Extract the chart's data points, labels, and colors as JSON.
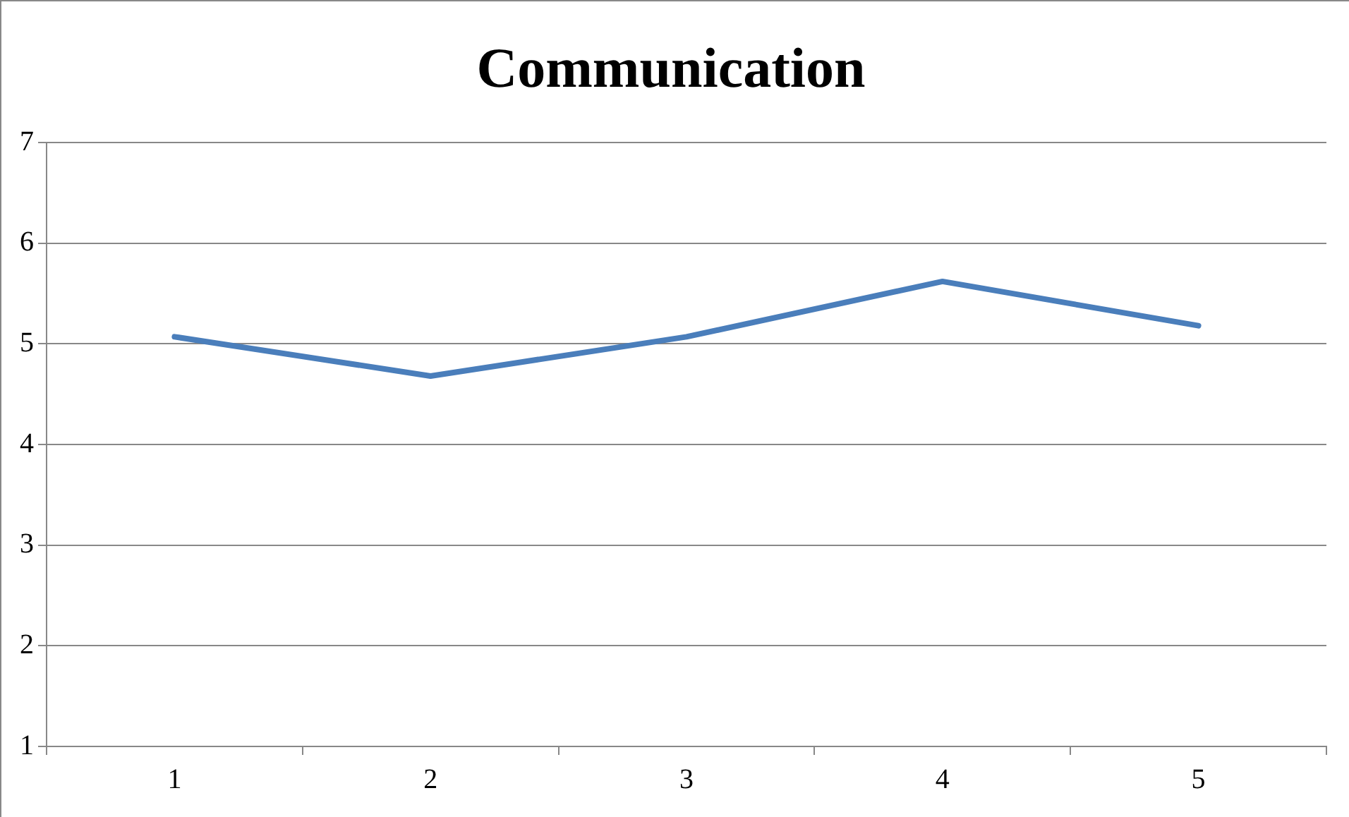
{
  "chart_data": {
    "type": "line",
    "title": "Communication",
    "categories": [
      "1",
      "2",
      "3",
      "4",
      "5"
    ],
    "values": [
      5.07,
      4.68,
      5.07,
      5.62,
      5.18
    ],
    "color": "#4a7ebb",
    "ylim": [
      1,
      7
    ],
    "yticks": [
      1,
      2,
      3,
      4,
      5,
      6,
      7
    ],
    "grid": "y",
    "legend": false,
    "marker": "none",
    "line_style": "solid"
  }
}
